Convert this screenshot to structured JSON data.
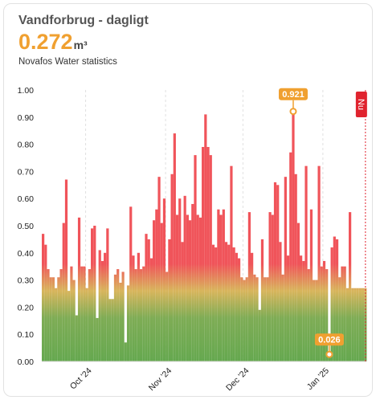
{
  "card": {
    "title": "Vandforbrug - dagligt",
    "value": "0.272",
    "unit": "m³",
    "subtitle": "Novafos Water statistics"
  },
  "chart_data": {
    "type": "bar",
    "ylim": [
      0,
      1.0
    ],
    "yticks": [
      "0.00",
      "0.10",
      "0.20",
      "0.30",
      "0.40",
      "0.50",
      "0.60",
      "0.70",
      "0.80",
      "0.90",
      "1.00"
    ],
    "xticks": [
      {
        "label": "Oct '24",
        "index": 17
      },
      {
        "label": "Nov '24",
        "index": 48
      },
      {
        "label": "Dec '24",
        "index": 78
      },
      {
        "label": "Jan '25",
        "index": 109
      }
    ],
    "values": [
      0.47,
      0.43,
      0.34,
      0.31,
      0.31,
      0.27,
      0.31,
      0.34,
      0.51,
      0.67,
      0.26,
      0.35,
      0.3,
      0.17,
      0.53,
      0.35,
      0.35,
      0.27,
      0.34,
      0.49,
      0.5,
      0.16,
      0.41,
      0.37,
      0.4,
      0.49,
      0.23,
      0.23,
      0.32,
      0.34,
      0.29,
      0.33,
      0.07,
      0.28,
      0.57,
      0.39,
      0.34,
      0.4,
      0.34,
      0.35,
      0.47,
      0.45,
      0.38,
      0.52,
      0.56,
      0.68,
      0.51,
      0.6,
      0.33,
      0.45,
      0.69,
      0.84,
      0.54,
      0.6,
      0.44,
      0.61,
      0.54,
      0.52,
      0.58,
      0.76,
      0.54,
      0.53,
      0.79,
      0.91,
      0.79,
      0.76,
      0.43,
      0.42,
      0.56,
      0.54,
      0.56,
      0.44,
      0.43,
      0.72,
      0.42,
      0.4,
      0.38,
      0.31,
      0.3,
      0.31,
      0.55,
      0.4,
      0.32,
      0.31,
      0.19,
      0.45,
      0.31,
      0.31,
      0.55,
      0.54,
      0.66,
      0.65,
      0.44,
      0.32,
      0.68,
      0.39,
      0.77,
      0.92,
      0.69,
      0.51,
      0.39,
      0.37,
      0.72,
      0.34,
      0.56,
      0.3,
      0.3,
      0.72,
      0.35,
      0.37,
      0.34,
      0.03,
      0.42,
      0.46,
      0.45,
      0.31,
      0.35,
      0.35,
      0.27,
      0.55,
      0.27,
      0.27,
      0.27,
      0.27,
      0.27,
      0.27
    ],
    "annotations": [
      {
        "label": "0.921",
        "index": 97,
        "value": 0.921
      },
      {
        "label": "0.026",
        "index": 111,
        "value": 0.026
      }
    ],
    "now_marker": {
      "label": "Nu",
      "index": 125.5
    },
    "colors": {
      "low": "#65a84f",
      "mid": "#d8b55c",
      "high": "#f0545a",
      "accent": "#f0a030",
      "now": "#e0232e"
    }
  }
}
